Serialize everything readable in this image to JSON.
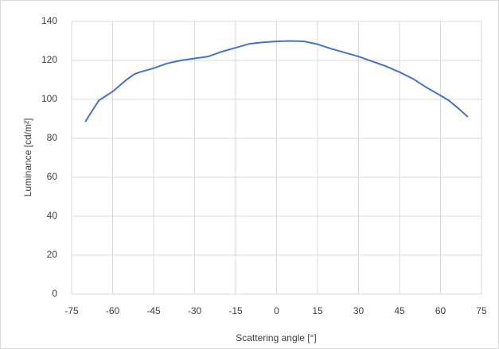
{
  "chart_data": {
    "type": "line",
    "x_label": "Scattering angle [°]",
    "y_label": "Luminance [cd/m²]",
    "x": [
      -70,
      -68,
      -65,
      -60,
      -55,
      -52,
      -50,
      -45,
      -40,
      -35,
      -30,
      -25,
      -20,
      -15,
      -10,
      -5,
      0,
      5,
      10,
      15,
      20,
      25,
      30,
      35,
      40,
      45,
      50,
      55,
      60,
      63,
      66,
      70
    ],
    "values": [
      88.5,
      93,
      99.5,
      104,
      110,
      113,
      114,
      116,
      118.5,
      120,
      121,
      122,
      124.5,
      126.5,
      128.5,
      129.3,
      129.8,
      130,
      129.8,
      128.3,
      126,
      124,
      122,
      119.5,
      117,
      114,
      110.5,
      106,
      102,
      99.5,
      96,
      91
    ],
    "color": "#4472c4",
    "xlim": [
      -75,
      75
    ],
    "xticks": [
      -75,
      -60,
      -45,
      -30,
      -15,
      0,
      15,
      30,
      45,
      60,
      75
    ],
    "ylim": [
      0,
      140
    ],
    "yticks": [
      0,
      20,
      40,
      60,
      80,
      100,
      120,
      140
    ],
    "grid": true
  }
}
